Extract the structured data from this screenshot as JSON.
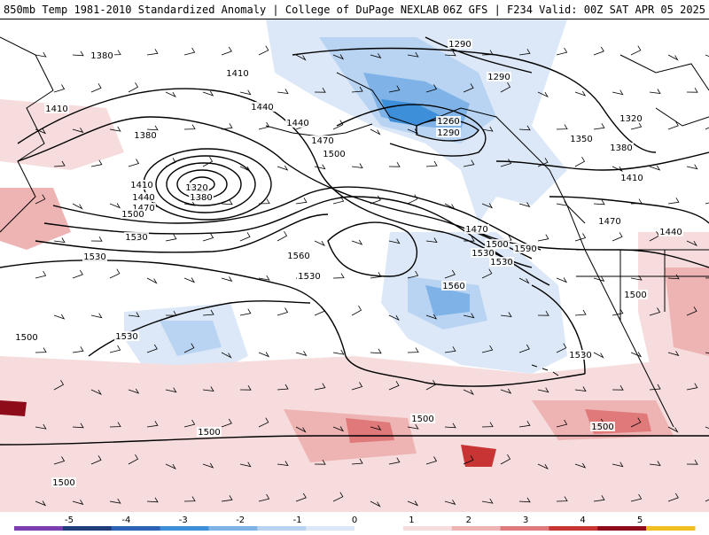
{
  "header": {
    "title_left": "850mb Temp 1981-2010 Standardized Anomaly | College of DuPage NEXLAB",
    "title_right": "06Z GFS | F234 Valid: 00Z SAT APR 05 2025"
  },
  "colors": {
    "contour": "#000000",
    "coast": "#000000",
    "scale": [
      "#7b3fb2",
      "#1f3d7a",
      "#2d63b5",
      "#3d8fd9",
      "#7fb3e8",
      "#b9d4f2",
      "#dce8f7",
      "#ffffff",
      "#f6dcdc",
      "#eeb3b3",
      "#e07a7a",
      "#c83434",
      "#8e0b1a",
      "#f0c020"
    ]
  },
  "colorbar": {
    "ticks": [
      "-5",
      "-4",
      "-3",
      "-2",
      "-1",
      "0",
      "1",
      "2",
      "3",
      "4",
      "5"
    ]
  },
  "contour_labels": [
    {
      "text": "1380"
    },
    {
      "text": "1410"
    },
    {
      "text": "1410"
    },
    {
      "text": "1440"
    },
    {
      "text": "1380"
    },
    {
      "text": "1320"
    },
    {
      "text": "1380"
    },
    {
      "text": "1410"
    },
    {
      "text": "1440"
    },
    {
      "text": "1470"
    },
    {
      "text": "1500"
    },
    {
      "text": "1470"
    },
    {
      "text": "1500"
    },
    {
      "text": "1530"
    },
    {
      "text": "1290"
    },
    {
      "text": "1290"
    },
    {
      "text": "1260"
    },
    {
      "text": "1290"
    },
    {
      "text": "1320"
    },
    {
      "text": "1350"
    },
    {
      "text": "1380"
    },
    {
      "text": "1410"
    },
    {
      "text": "1440"
    },
    {
      "text": "1470"
    },
    {
      "text": "1500"
    },
    {
      "text": "1530"
    },
    {
      "text": "1590"
    },
    {
      "text": "1560"
    },
    {
      "text": "1560"
    },
    {
      "text": "1530"
    },
    {
      "text": "1530"
    },
    {
      "text": "1530"
    },
    {
      "text": "1500"
    },
    {
      "text": "1530"
    },
    {
      "text": "1500"
    },
    {
      "text": "1500"
    },
    {
      "text": "1530"
    },
    {
      "text": "1500"
    },
    {
      "text": "1500"
    },
    {
      "text": "1470"
    },
    {
      "text": "1440"
    },
    {
      "text": "1500"
    }
  ]
}
